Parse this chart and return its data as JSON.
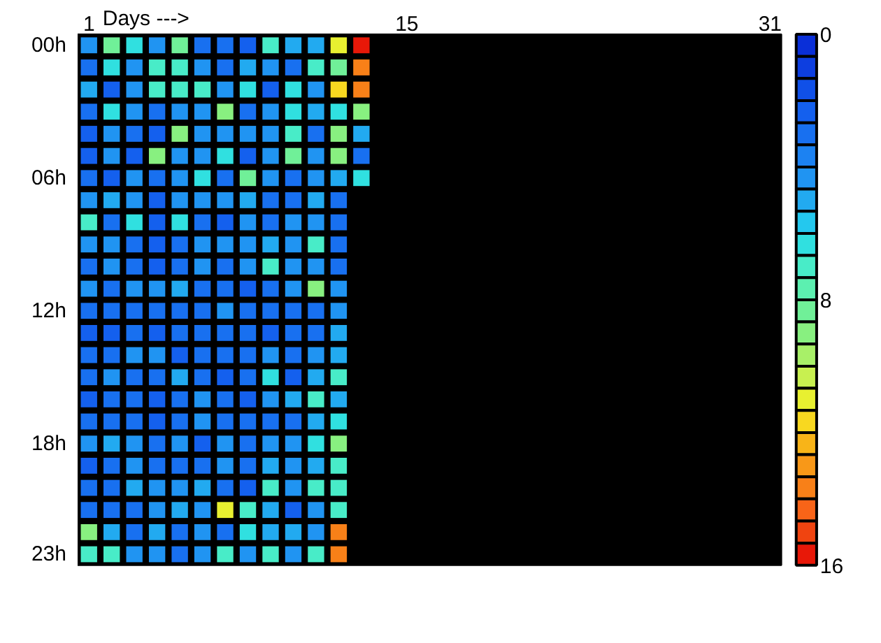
{
  "chart_data": {
    "type": "heatmap",
    "xlabel": "Days --->",
    "categories": [
      "1",
      null,
      null,
      null,
      null,
      null,
      null,
      null,
      null,
      null,
      null,
      null,
      null,
      null,
      "15",
      null,
      null,
      null,
      null,
      null,
      null,
      null,
      null,
      null,
      null,
      null,
      null,
      null,
      null,
      null,
      "31"
    ],
    "y_categories": [
      "00h",
      null,
      null,
      null,
      null,
      null,
      "06h",
      null,
      null,
      null,
      null,
      null,
      "12h",
      null,
      null,
      null,
      null,
      null,
      "18h",
      null,
      null,
      null,
      null,
      "23h"
    ],
    "cells": [
      [
        4,
        8,
        6,
        4,
        8,
        3,
        3,
        2,
        7,
        5,
        5,
        11,
        16,
        null,
        null,
        null,
        null,
        null,
        null,
        null,
        null,
        null,
        null,
        null,
        null,
        null,
        null,
        null,
        null,
        null,
        null
      ],
      [
        3,
        6,
        4,
        7,
        7,
        4,
        3,
        5,
        4,
        3,
        7,
        8,
        14,
        null,
        null,
        null,
        null,
        null,
        null,
        null,
        null,
        null,
        null,
        null,
        null,
        null,
        null,
        null,
        null,
        null,
        null
      ],
      [
        5,
        2,
        4,
        7,
        7,
        7,
        4,
        6,
        2,
        6,
        4,
        12,
        14,
        null,
        null,
        null,
        null,
        null,
        null,
        null,
        null,
        null,
        null,
        null,
        null,
        null,
        null,
        null,
        null,
        null,
        null
      ],
      [
        3,
        6,
        4,
        3,
        4,
        4,
        9,
        3,
        4,
        6,
        5,
        6,
        9,
        null,
        null,
        null,
        null,
        null,
        null,
        null,
        null,
        null,
        null,
        null,
        null,
        null,
        null,
        null,
        null,
        null,
        null
      ],
      [
        2,
        4,
        3,
        2,
        9,
        4,
        4,
        4,
        4,
        7,
        3,
        9,
        5,
        null,
        null,
        null,
        null,
        null,
        null,
        null,
        null,
        null,
        null,
        null,
        null,
        null,
        null,
        null,
        null,
        null,
        null
      ],
      [
        2,
        4,
        2,
        9,
        4,
        4,
        6,
        2,
        4,
        8,
        4,
        9,
        3,
        null,
        null,
        null,
        null,
        null,
        null,
        null,
        null,
        null,
        null,
        null,
        null,
        null,
        null,
        null,
        null,
        null,
        null
      ],
      [
        3,
        2,
        4,
        3,
        4,
        6,
        3,
        8,
        4,
        3,
        4,
        5,
        6,
        null,
        null,
        null,
        null,
        null,
        null,
        null,
        null,
        null,
        null,
        null,
        null,
        null,
        null,
        null,
        null,
        null,
        null
      ],
      [
        4,
        5,
        4,
        2,
        4,
        4,
        4,
        5,
        3,
        3,
        5,
        3,
        null,
        null,
        null,
        null,
        null,
        null,
        null,
        null,
        null,
        null,
        null,
        null,
        null,
        null,
        null,
        null,
        null,
        null,
        null
      ],
      [
        7,
        3,
        6,
        2,
        6,
        3,
        2,
        4,
        3,
        4,
        4,
        3,
        null,
        null,
        null,
        null,
        null,
        null,
        null,
        null,
        null,
        null,
        null,
        null,
        null,
        null,
        null,
        null,
        null,
        null,
        null
      ],
      [
        4,
        4,
        3,
        2,
        3,
        4,
        4,
        4,
        5,
        4,
        7,
        3,
        null,
        null,
        null,
        null,
        null,
        null,
        null,
        null,
        null,
        null,
        null,
        null,
        null,
        null,
        null,
        null,
        null,
        null,
        null
      ],
      [
        3,
        4,
        3,
        2,
        3,
        4,
        3,
        4,
        7,
        4,
        4,
        3,
        null,
        null,
        null,
        null,
        null,
        null,
        null,
        null,
        null,
        null,
        null,
        null,
        null,
        null,
        null,
        null,
        null,
        null,
        null
      ],
      [
        4,
        3,
        4,
        4,
        5,
        3,
        3,
        2,
        3,
        4,
        9,
        4,
        null,
        null,
        null,
        null,
        null,
        null,
        null,
        null,
        null,
        null,
        null,
        null,
        null,
        null,
        null,
        null,
        null,
        null,
        null
      ],
      [
        3,
        3,
        3,
        3,
        3,
        3,
        4,
        3,
        3,
        3,
        3,
        4,
        null,
        null,
        null,
        null,
        null,
        null,
        null,
        null,
        null,
        null,
        null,
        null,
        null,
        null,
        null,
        null,
        null,
        null,
        null
      ],
      [
        2,
        2,
        3,
        2,
        3,
        3,
        3,
        3,
        2,
        3,
        3,
        5,
        null,
        null,
        null,
        null,
        null,
        null,
        null,
        null,
        null,
        null,
        null,
        null,
        null,
        null,
        null,
        null,
        null,
        null,
        null
      ],
      [
        3,
        3,
        4,
        4,
        2,
        3,
        3,
        3,
        4,
        3,
        4,
        5,
        null,
        null,
        null,
        null,
        null,
        null,
        null,
        null,
        null,
        null,
        null,
        null,
        null,
        null,
        null,
        null,
        null,
        null,
        null
      ],
      [
        3,
        4,
        3,
        3,
        5,
        3,
        2,
        3,
        6,
        2,
        5,
        7,
        null,
        null,
        null,
        null,
        null,
        null,
        null,
        null,
        null,
        null,
        null,
        null,
        null,
        null,
        null,
        null,
        null,
        null,
        null
      ],
      [
        2,
        3,
        3,
        2,
        3,
        4,
        3,
        2,
        4,
        5,
        7,
        5,
        null,
        null,
        null,
        null,
        null,
        null,
        null,
        null,
        null,
        null,
        null,
        null,
        null,
        null,
        null,
        null,
        null,
        null,
        null
      ],
      [
        3,
        3,
        3,
        2,
        3,
        4,
        3,
        3,
        3,
        3,
        5,
        6,
        null,
        null,
        null,
        null,
        null,
        null,
        null,
        null,
        null,
        null,
        null,
        null,
        null,
        null,
        null,
        null,
        null,
        null,
        null
      ],
      [
        4,
        5,
        4,
        3,
        4,
        2,
        4,
        3,
        4,
        4,
        6,
        9,
        null,
        null,
        null,
        null,
        null,
        null,
        null,
        null,
        null,
        null,
        null,
        null,
        null,
        null,
        null,
        null,
        null,
        null,
        null
      ],
      [
        2,
        3,
        4,
        3,
        3,
        3,
        4,
        3,
        5,
        4,
        5,
        7,
        null,
        null,
        null,
        null,
        null,
        null,
        null,
        null,
        null,
        null,
        null,
        null,
        null,
        null,
        null,
        null,
        null,
        null,
        null
      ],
      [
        3,
        3,
        5,
        4,
        4,
        5,
        3,
        2,
        7,
        4,
        7,
        7,
        null,
        null,
        null,
        null,
        null,
        null,
        null,
        null,
        null,
        null,
        null,
        null,
        null,
        null,
        null,
        null,
        null,
        null,
        null
      ],
      [
        3,
        3,
        3,
        4,
        5,
        4,
        11,
        7,
        5,
        2,
        4,
        7,
        null,
        null,
        null,
        null,
        null,
        null,
        null,
        null,
        null,
        null,
        null,
        null,
        null,
        null,
        null,
        null,
        null,
        null,
        null
      ],
      [
        9,
        5,
        3,
        5,
        3,
        4,
        3,
        6,
        5,
        5,
        4,
        14,
        null,
        null,
        null,
        null,
        null,
        null,
        null,
        null,
        null,
        null,
        null,
        null,
        null,
        null,
        null,
        null,
        null,
        null,
        null
      ],
      [
        7,
        7,
        4,
        4,
        3,
        4,
        7,
        4,
        7,
        4,
        7,
        14,
        null,
        null,
        null,
        null,
        null,
        null,
        null,
        null,
        null,
        null,
        null,
        null,
        null,
        null,
        null,
        null,
        null,
        null,
        null
      ]
    ],
    "clim": [
      0,
      16
    ],
    "cticks": [
      0,
      8,
      16
    ]
  }
}
